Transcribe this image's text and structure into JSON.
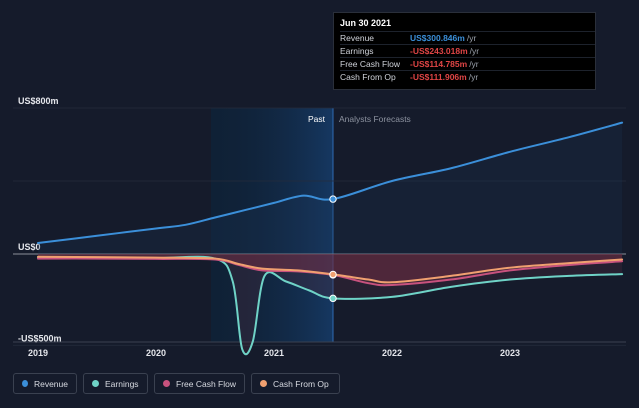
{
  "chart_data": {
    "type": "line",
    "title": "",
    "x": [
      "2019",
      "2020",
      "2021",
      "2022",
      "2023"
    ],
    "xlim": [
      2018.96,
      2023.95
    ],
    "ylim": [
      -560,
      800
    ],
    "y_ticks": [
      {
        "label": "US$800m",
        "value": 800
      },
      {
        "label": "US$0",
        "value": 0
      },
      {
        "label": "-US$500m",
        "value": -500
      }
    ],
    "divider_labels": {
      "past": "Past",
      "forecast": "Analysts Forecasts"
    },
    "past_end": 2021.5,
    "series": [
      {
        "name": "Revenue",
        "color": "#3b8fd9",
        "points": [
          [
            2019.0,
            60
          ],
          [
            2019.5,
            100
          ],
          [
            2020.0,
            140
          ],
          [
            2020.25,
            160
          ],
          [
            2020.5,
            200
          ],
          [
            2020.75,
            240
          ],
          [
            2021.0,
            280
          ],
          [
            2021.25,
            320
          ],
          [
            2021.5,
            300.846
          ],
          [
            2022.0,
            400
          ],
          [
            2022.5,
            470
          ],
          [
            2023.0,
            560
          ],
          [
            2023.5,
            640
          ],
          [
            2023.95,
            720
          ]
        ]
      },
      {
        "name": "Earnings",
        "color": "#6fd3c7",
        "points": [
          [
            2019.0,
            -20
          ],
          [
            2019.5,
            -20
          ],
          [
            2020.0,
            -22
          ],
          [
            2020.5,
            -25
          ],
          [
            2020.65,
            -150
          ],
          [
            2020.73,
            -520
          ],
          [
            2020.82,
            -480
          ],
          [
            2020.92,
            -120
          ],
          [
            2021.1,
            -150
          ],
          [
            2021.3,
            -200
          ],
          [
            2021.5,
            -243.018
          ],
          [
            2022.0,
            -235
          ],
          [
            2022.5,
            -180
          ],
          [
            2023.0,
            -140
          ],
          [
            2023.5,
            -120
          ],
          [
            2023.95,
            -110
          ]
        ]
      },
      {
        "name": "Free Cash Flow",
        "color": "#c8527e",
        "points": [
          [
            2019.0,
            -25
          ],
          [
            2019.5,
            -25
          ],
          [
            2020.0,
            -27
          ],
          [
            2020.5,
            -30
          ],
          [
            2020.7,
            -60
          ],
          [
            2020.9,
            -90
          ],
          [
            2021.2,
            -95
          ],
          [
            2021.5,
            -114.785
          ],
          [
            2021.8,
            -160
          ],
          [
            2022.0,
            -170
          ],
          [
            2022.5,
            -140
          ],
          [
            2023.0,
            -90
          ],
          [
            2023.5,
            -60
          ],
          [
            2023.95,
            -40
          ]
        ]
      },
      {
        "name": "Cash From Op",
        "color": "#f0a070",
        "points": [
          [
            2019.0,
            -15
          ],
          [
            2019.5,
            -17
          ],
          [
            2020.0,
            -20
          ],
          [
            2020.5,
            -25
          ],
          [
            2020.7,
            -55
          ],
          [
            2020.9,
            -80
          ],
          [
            2021.2,
            -90
          ],
          [
            2021.5,
            -111.906
          ],
          [
            2021.8,
            -140
          ],
          [
            2022.0,
            -155
          ],
          [
            2022.5,
            -120
          ],
          [
            2023.0,
            -75
          ],
          [
            2023.5,
            -50
          ],
          [
            2023.95,
            -30
          ]
        ]
      }
    ]
  },
  "tooltip": {
    "date": "Jun 30 2021",
    "unit": "/yr",
    "rows": [
      {
        "label": "Revenue",
        "value": "US$300.846m",
        "color": "#3b8fd9"
      },
      {
        "label": "Earnings",
        "value": "-US$243.018m",
        "color": "#e04545"
      },
      {
        "label": "Free Cash Flow",
        "value": "-US$114.785m",
        "color": "#e04545"
      },
      {
        "label": "Cash From Op",
        "value": "-US$111.906m",
        "color": "#e04545"
      }
    ]
  },
  "legend": [
    {
      "label": "Revenue",
      "color": "#3b8fd9"
    },
    {
      "label": "Earnings",
      "color": "#6fd3c7"
    },
    {
      "label": "Free Cash Flow",
      "color": "#c8527e"
    },
    {
      "label": "Cash From Op",
      "color": "#f0a070"
    }
  ]
}
